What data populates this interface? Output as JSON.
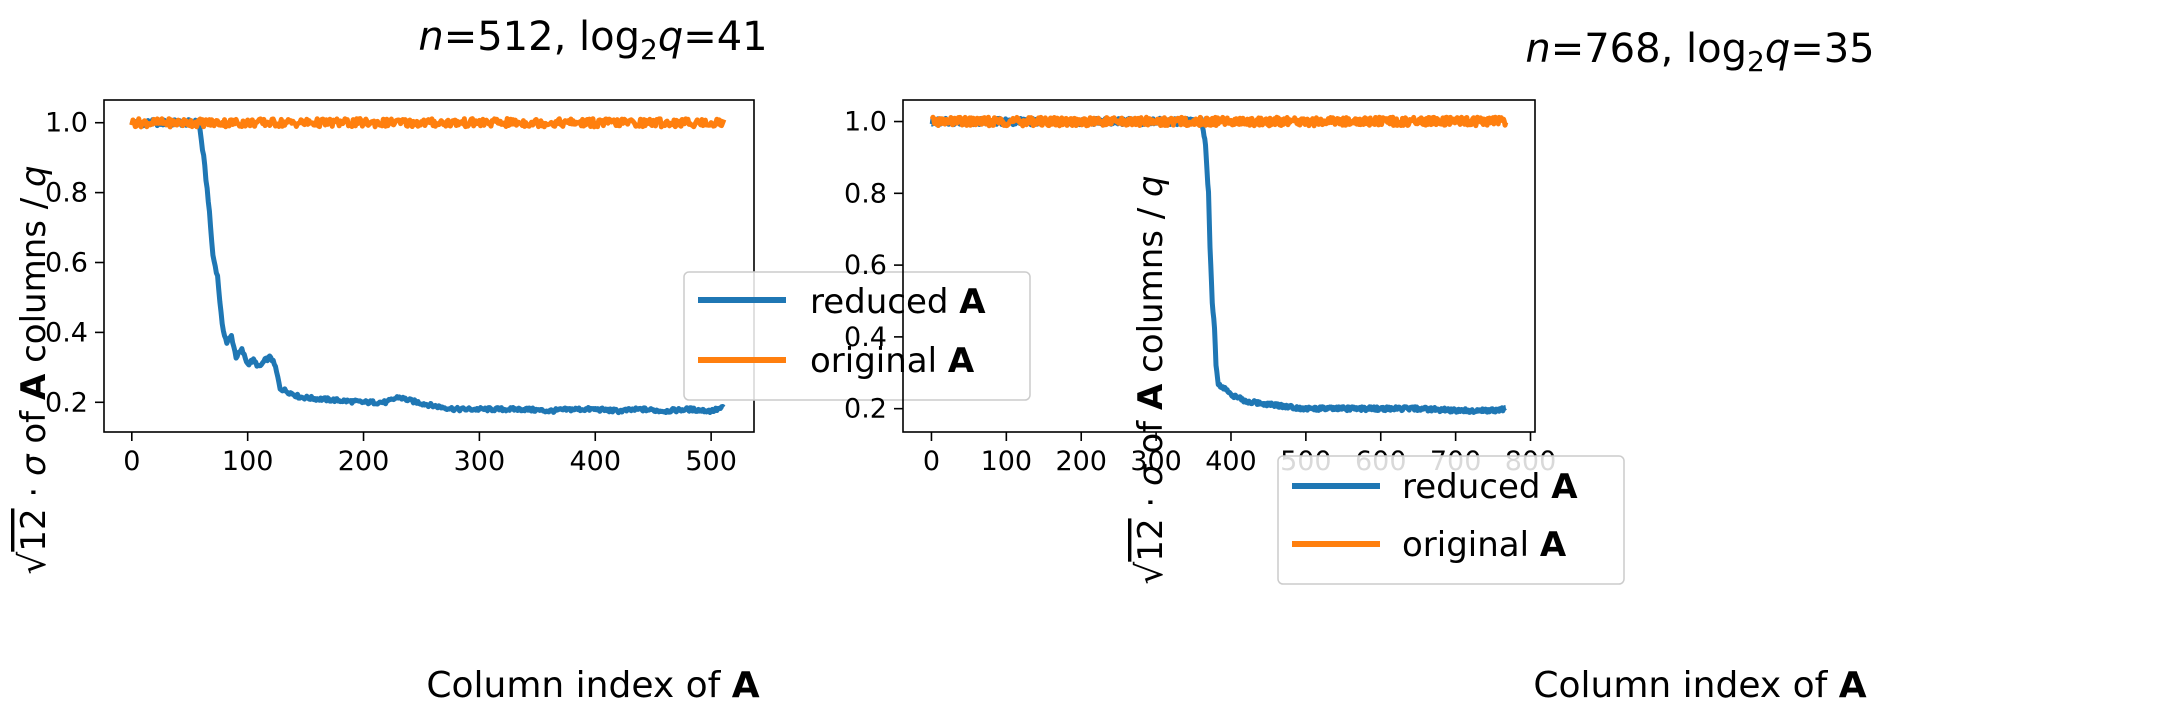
{
  "chart_data": [
    {
      "type": "line",
      "title": {
        "n": "512",
        "log": "41"
      },
      "xlabel": "Column index of",
      "xlabel_bold": "A",
      "ylabel": "√12 · σ of A columns / q",
      "xlim": [
        -24,
        537
      ],
      "ylim": [
        0.115,
        1.065
      ],
      "xticks": [
        0,
        100,
        200,
        300,
        400,
        500
      ],
      "yticks": [
        0.2,
        0.4,
        0.6,
        0.8,
        1.0
      ],
      "legend_position": "center-right",
      "series": [
        {
          "name": "reduced A",
          "color": "#1f77b4",
          "x": [
            0,
            10,
            20,
            30,
            40,
            50,
            58,
            62,
            66,
            70,
            74,
            78,
            82,
            86,
            90,
            95,
            100,
            105,
            110,
            115,
            120,
            124,
            128,
            135,
            145,
            160,
            180,
            200,
            220,
            230,
            240,
            260,
            280,
            300,
            320,
            340,
            360,
            380,
            400,
            420,
            440,
            460,
            480,
            500,
            511
          ],
          "y": [
            1.0,
            1.0,
            1.0,
            1.0,
            1.0,
            1.0,
            1.0,
            0.9,
            0.78,
            0.62,
            0.56,
            0.42,
            0.37,
            0.39,
            0.33,
            0.35,
            0.31,
            0.32,
            0.3,
            0.32,
            0.33,
            0.3,
            0.24,
            0.23,
            0.215,
            0.21,
            0.205,
            0.2,
            0.2,
            0.215,
            0.205,
            0.19,
            0.18,
            0.18,
            0.18,
            0.18,
            0.175,
            0.18,
            0.18,
            0.175,
            0.18,
            0.175,
            0.18,
            0.175,
            0.185
          ]
        },
        {
          "name": "original A",
          "color": "#ff7f0e",
          "x": [
            0,
            50,
            100,
            150,
            200,
            250,
            300,
            350,
            400,
            450,
            500,
            511
          ],
          "y": [
            1.0,
            1.0,
            1.0,
            1.0,
            1.0,
            1.0,
            1.0,
            1.0,
            1.0,
            1.0,
            1.0,
            1.0
          ]
        }
      ]
    },
    {
      "type": "line",
      "title": {
        "n": "768",
        "log": "35"
      },
      "xlabel": "Column index of",
      "xlabel_bold": "A",
      "ylabel": "√12 · σ of A columns / q",
      "xlim": [
        -38,
        806
      ],
      "ylim": [
        0.135,
        1.06
      ],
      "xticks": [
        0,
        100,
        200,
        300,
        400,
        500,
        600,
        700,
        800
      ],
      "yticks": [
        0.2,
        0.4,
        0.6,
        0.8,
        1.0
      ],
      "legend_position": "lower-left",
      "series": [
        {
          "name": "reduced A",
          "color": "#1f77b4",
          "x": [
            0,
            100,
            200,
            300,
            360,
            365,
            370,
            372,
            375,
            378,
            380,
            383,
            386,
            390,
            400,
            420,
            440,
            460,
            500,
            550,
            600,
            650,
            700,
            750,
            767
          ],
          "y": [
            1.0,
            1.0,
            1.0,
            1.0,
            1.0,
            0.96,
            0.8,
            0.65,
            0.5,
            0.42,
            0.32,
            0.27,
            0.26,
            0.26,
            0.24,
            0.22,
            0.215,
            0.21,
            0.2,
            0.2,
            0.2,
            0.2,
            0.195,
            0.195,
            0.2
          ]
        },
        {
          "name": "original A",
          "color": "#ff7f0e",
          "x": [
            0,
            100,
            200,
            300,
            400,
            500,
            600,
            700,
            767
          ],
          "y": [
            1.0,
            1.0,
            1.0,
            1.0,
            1.0,
            1.0,
            1.0,
            1.0,
            1.0
          ]
        }
      ]
    }
  ]
}
